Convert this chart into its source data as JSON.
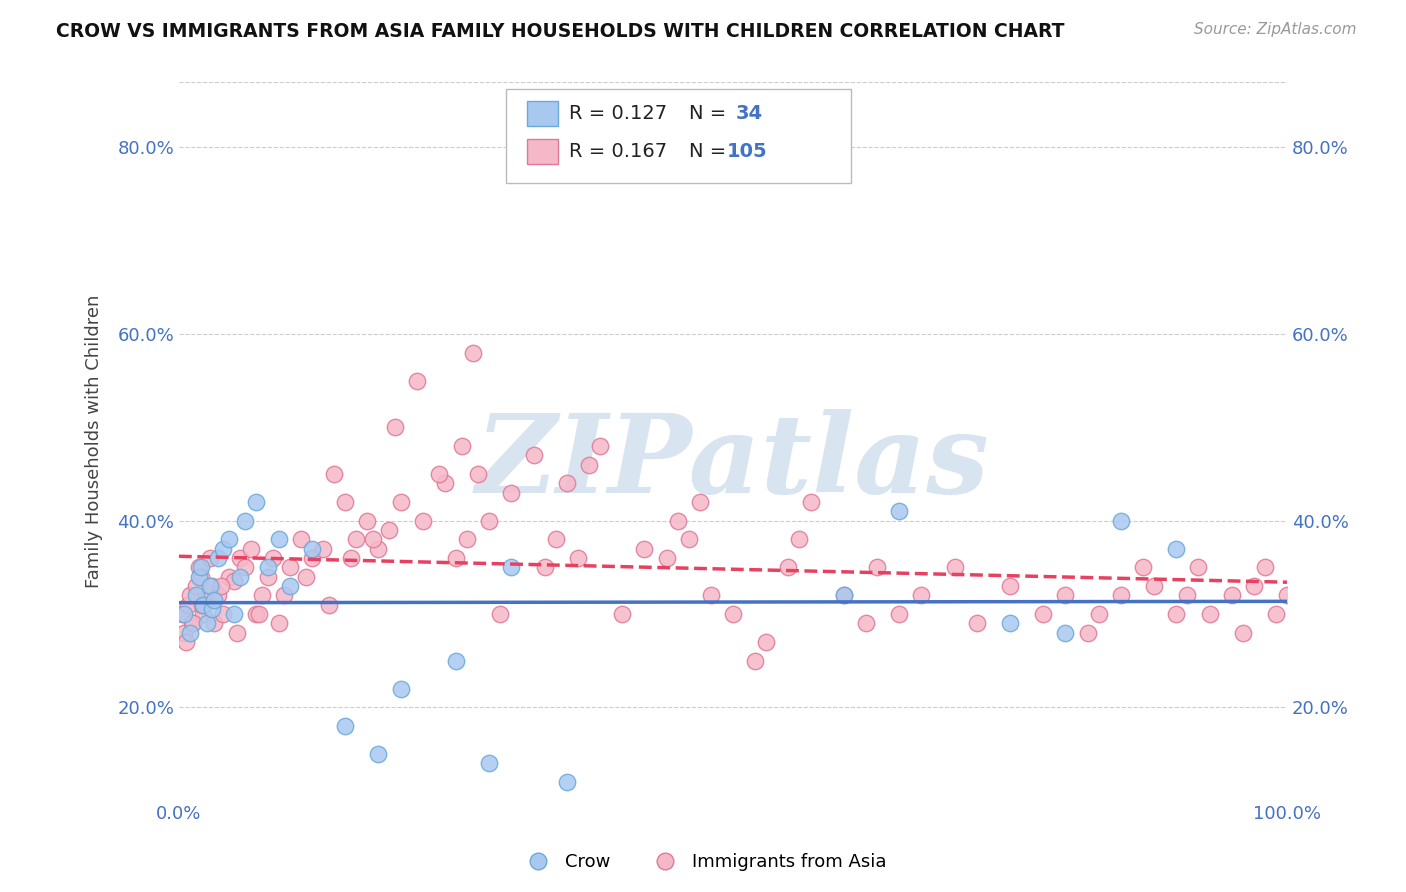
{
  "title": "CROW VS IMMIGRANTS FROM ASIA FAMILY HOUSEHOLDS WITH CHILDREN CORRELATION CHART",
  "source": "Source: ZipAtlas.com",
  "ylabel": "Family Households with Children",
  "xlim": [
    0,
    100
  ],
  "ylim": [
    10,
    87
  ],
  "yticks": [
    20,
    40,
    60,
    80
  ],
  "ytick_labels": [
    "20.0%",
    "40.0%",
    "60.0%",
    "80.0%"
  ],
  "crow_color": "#a8c8f0",
  "crow_edge_color": "#6aaad8",
  "asia_color": "#f5b8c8",
  "asia_edge_color": "#e07898",
  "crow_line_color": "#4472c4",
  "asia_line_color": "#e84060",
  "watermark_text": "ZIPatlas",
  "crow_label": "Crow",
  "asia_label": "Immigrants from Asia",
  "background_color": "#ffffff",
  "grid_color": "#cccccc",
  "axis_color": "#4472c4",
  "watermark_color": "#d8e4f0",
  "crow_scatter": [
    [
      0.5,
      30.0
    ],
    [
      1.0,
      28.0
    ],
    [
      1.5,
      32.0
    ],
    [
      1.8,
      34.0
    ],
    [
      2.0,
      35.0
    ],
    [
      2.2,
      31.0
    ],
    [
      2.5,
      29.0
    ],
    [
      2.8,
      33.0
    ],
    [
      3.0,
      30.5
    ],
    [
      3.2,
      31.5
    ],
    [
      3.5,
      36.0
    ],
    [
      4.0,
      37.0
    ],
    [
      4.5,
      38.0
    ],
    [
      5.0,
      30.0
    ],
    [
      5.5,
      34.0
    ],
    [
      6.0,
      40.0
    ],
    [
      7.0,
      42.0
    ],
    [
      8.0,
      35.0
    ],
    [
      9.0,
      38.0
    ],
    [
      10.0,
      33.0
    ],
    [
      12.0,
      37.0
    ],
    [
      15.0,
      18.0
    ],
    [
      18.0,
      15.0
    ],
    [
      20.0,
      22.0
    ],
    [
      25.0,
      25.0
    ],
    [
      28.0,
      14.0
    ],
    [
      30.0,
      35.0
    ],
    [
      35.0,
      12.0
    ],
    [
      60.0,
      32.0
    ],
    [
      65.0,
      41.0
    ],
    [
      75.0,
      29.0
    ],
    [
      80.0,
      28.0
    ],
    [
      85.0,
      40.0
    ],
    [
      90.0,
      37.0
    ]
  ],
  "asia_scatter": [
    [
      0.3,
      30.0
    ],
    [
      0.5,
      28.0
    ],
    [
      0.8,
      31.0
    ],
    [
      1.0,
      32.0
    ],
    [
      1.2,
      29.0
    ],
    [
      1.5,
      33.0
    ],
    [
      1.8,
      35.0
    ],
    [
      2.0,
      34.0
    ],
    [
      2.2,
      30.0
    ],
    [
      2.5,
      31.5
    ],
    [
      2.8,
      36.0
    ],
    [
      3.0,
      33.0
    ],
    [
      3.2,
      29.0
    ],
    [
      3.5,
      32.0
    ],
    [
      4.0,
      30.0
    ],
    [
      4.5,
      34.0
    ],
    [
      5.0,
      33.5
    ],
    [
      5.5,
      36.0
    ],
    [
      6.0,
      35.0
    ],
    [
      6.5,
      37.0
    ],
    [
      7.0,
      30.0
    ],
    [
      7.5,
      32.0
    ],
    [
      8.0,
      34.0
    ],
    [
      8.5,
      36.0
    ],
    [
      9.0,
      29.0
    ],
    [
      10.0,
      35.0
    ],
    [
      11.0,
      38.0
    ],
    [
      12.0,
      36.0
    ],
    [
      13.0,
      37.0
    ],
    [
      14.0,
      45.0
    ],
    [
      15.0,
      42.0
    ],
    [
      16.0,
      38.0
    ],
    [
      17.0,
      40.0
    ],
    [
      18.0,
      37.0
    ],
    [
      19.0,
      39.0
    ],
    [
      20.0,
      42.0
    ],
    [
      22.0,
      40.0
    ],
    [
      24.0,
      44.0
    ],
    [
      25.0,
      36.0
    ],
    [
      26.0,
      38.0
    ],
    [
      27.0,
      45.0
    ],
    [
      28.0,
      40.0
    ],
    [
      30.0,
      43.0
    ],
    [
      32.0,
      47.0
    ],
    [
      33.0,
      35.0
    ],
    [
      34.0,
      38.0
    ],
    [
      35.0,
      44.0
    ],
    [
      36.0,
      36.0
    ],
    [
      37.0,
      46.0
    ],
    [
      38.0,
      48.0
    ],
    [
      40.0,
      30.0
    ],
    [
      42.0,
      37.0
    ],
    [
      44.0,
      36.0
    ],
    [
      45.0,
      40.0
    ],
    [
      46.0,
      38.0
    ],
    [
      47.0,
      42.0
    ],
    [
      48.0,
      32.0
    ],
    [
      50.0,
      30.0
    ],
    [
      52.0,
      25.0
    ],
    [
      53.0,
      27.0
    ],
    [
      55.0,
      35.0
    ],
    [
      56.0,
      38.0
    ],
    [
      57.0,
      42.0
    ],
    [
      60.0,
      32.0
    ],
    [
      62.0,
      29.0
    ],
    [
      63.0,
      35.0
    ],
    [
      65.0,
      30.0
    ],
    [
      67.0,
      32.0
    ],
    [
      70.0,
      35.0
    ],
    [
      72.0,
      29.0
    ],
    [
      75.0,
      33.0
    ],
    [
      78.0,
      30.0
    ],
    [
      80.0,
      32.0
    ],
    [
      82.0,
      28.0
    ],
    [
      83.0,
      30.0
    ],
    [
      85.0,
      32.0
    ],
    [
      87.0,
      35.0
    ],
    [
      88.0,
      33.0
    ],
    [
      90.0,
      30.0
    ],
    [
      91.0,
      32.0
    ],
    [
      92.0,
      35.0
    ],
    [
      93.0,
      30.0
    ],
    [
      95.0,
      32.0
    ],
    [
      96.0,
      28.0
    ],
    [
      97.0,
      33.0
    ],
    [
      98.0,
      35.0
    ],
    [
      99.0,
      30.0
    ],
    [
      100.0,
      32.0
    ],
    [
      0.6,
      27.0
    ],
    [
      1.3,
      29.0
    ],
    [
      2.1,
      31.0
    ],
    [
      3.8,
      33.0
    ],
    [
      5.2,
      28.0
    ],
    [
      7.2,
      30.0
    ],
    [
      9.5,
      32.0
    ],
    [
      11.5,
      34.0
    ],
    [
      13.5,
      31.0
    ],
    [
      15.5,
      36.0
    ],
    [
      17.5,
      38.0
    ],
    [
      19.5,
      50.0
    ],
    [
      21.5,
      55.0
    ],
    [
      23.5,
      45.0
    ],
    [
      25.5,
      48.0
    ],
    [
      26.5,
      58.0
    ],
    [
      29.0,
      30.0
    ]
  ],
  "crow_trendline_x": [
    0,
    100
  ],
  "crow_trendline_y": [
    28.5,
    33.5
  ],
  "asia_trendline_x": [
    0,
    100
  ],
  "asia_trendline_y": [
    29.0,
    38.5
  ]
}
